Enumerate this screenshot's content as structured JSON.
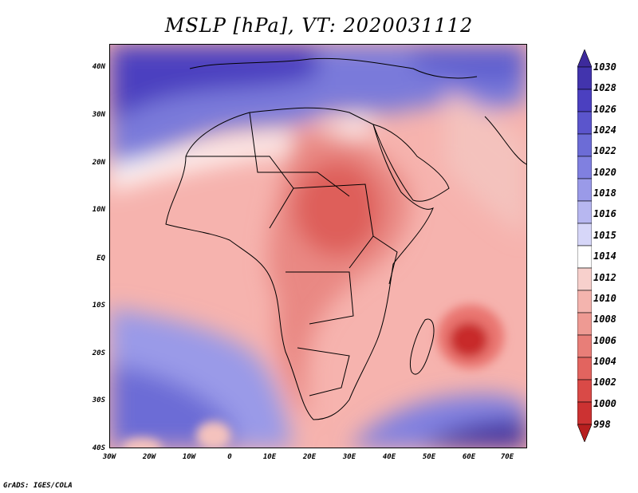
{
  "title": "MSLP [hPa], VT: 2020031112",
  "credit": "GrADS: IGES/COLA",
  "map": {
    "variable": "Mean sea level pressure",
    "units": "hPa",
    "valid_time": "2020031112",
    "lat_ticks": [
      "40N",
      "30N",
      "20N",
      "10N",
      "EQ",
      "10S",
      "20S",
      "30S",
      "40S"
    ],
    "lon_ticks": [
      "30W",
      "20W",
      "10W",
      "0",
      "10E",
      "20E",
      "30E",
      "40E",
      "50E",
      "60E",
      "70E"
    ],
    "features": {
      "low_centers": [
        {
          "label": "Heat low over Sudan/South Sudan",
          "lon": 30,
          "lat": 12,
          "value": 1004
        },
        {
          "label": "Tropical low east of Madagascar",
          "lon": 59,
          "lat": -18,
          "value": 998
        }
      ],
      "high_regions": [
        {
          "label": "Mediterranean / North Africa high",
          "value": 1026
        },
        {
          "label": "South Atlantic high",
          "value": 1022
        },
        {
          "label": "South Indian Ocean high",
          "value": 1030
        }
      ]
    }
  },
  "colorbar": {
    "labels": [
      "1030",
      "1028",
      "1026",
      "1024",
      "1022",
      "1020",
      "1018",
      "1016",
      "1015",
      "1014",
      "1012",
      "1010",
      "1008",
      "1006",
      "1004",
      "1002",
      "1000",
      "998"
    ],
    "colors": [
      "#3d2a9c",
      "#4234ad",
      "#4b40c0",
      "#5b55cc",
      "#6c6cd6",
      "#8080e0",
      "#9a9ae8",
      "#b7b7f0",
      "#d6d6f8",
      "#ffffff",
      "#f7d0cc",
      "#f4b4ae",
      "#ee9a93",
      "#e87e78",
      "#e2645f",
      "#d94a47",
      "#cc3232",
      "#b71f1f"
    ]
  }
}
